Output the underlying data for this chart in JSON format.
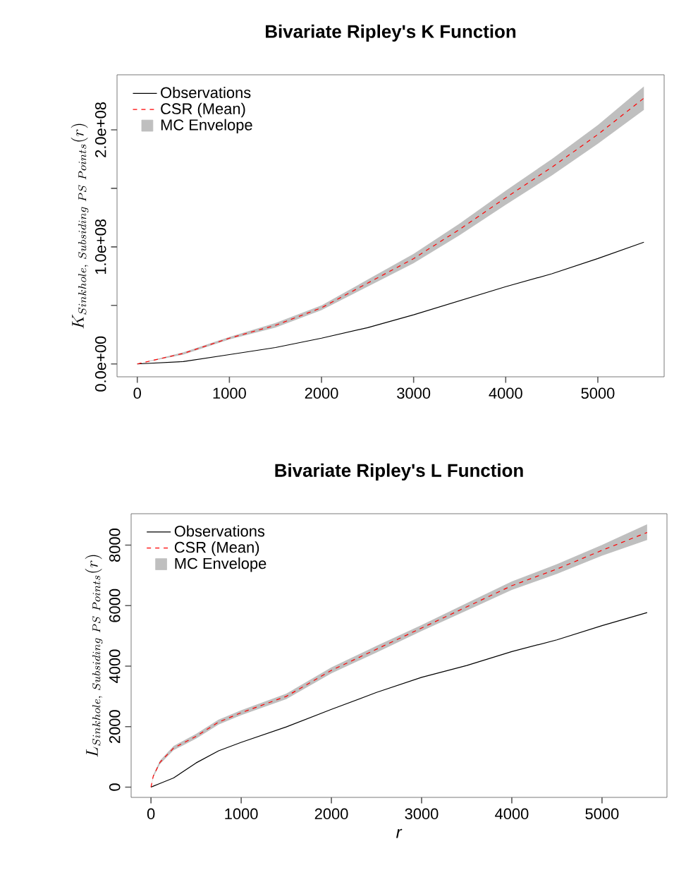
{
  "chart_data": [
    {
      "type": "line",
      "title": "Bivariate Ripley's K Function",
      "ylabel": "K_{Sinkhole,\\ Subsiding\\ PS\\ Points}(r)",
      "x": [
        0,
        500,
        1000,
        1500,
        2000,
        2500,
        3000,
        3500,
        4000,
        4500,
        5000,
        5500
      ],
      "series": [
        {
          "name": "Observations",
          "color": "#000000",
          "line_style": "solid",
          "values": [
            0,
            2000000,
            8000000,
            14000000,
            22000000,
            31000000,
            42000000,
            54000000,
            66000000,
            77000000,
            90000000,
            104000000
          ]
        },
        {
          "name": "CSR (Mean)",
          "color": "#ff0000",
          "line_style": "dashed",
          "values": [
            0,
            9000000,
            22000000,
            33000000,
            48000000,
            69000000,
            90000000,
            115000000,
            142000000,
            168000000,
            196000000,
            227000000
          ],
          "lower": [
            0,
            8000000,
            21000000,
            31000000,
            46000000,
            66000000,
            86000000,
            110000000,
            136000000,
            161000000,
            188000000,
            217000000
          ],
          "upper": [
            0,
            10000000,
            23000000,
            35000000,
            50000000,
            72000000,
            94000000,
            120000000,
            148000000,
            175000000,
            204000000,
            237000000
          ]
        }
      ],
      "annotations": [
        "MC Envelope"
      ],
      "xlim": [
        -220,
        5720
      ],
      "ylim": [
        -11000000,
        247000000
      ],
      "xticks": [
        0,
        1000,
        2000,
        3000,
        4000,
        5000
      ],
      "yticks": [
        {
          "value": 0,
          "label": "0.0e+00"
        },
        {
          "value": 50000000,
          "label": null
        },
        {
          "value": 100000000,
          "label": "1.0e+08"
        },
        {
          "value": 150000000,
          "label": null
        },
        {
          "value": 200000000,
          "label": "2.0e+08"
        }
      ],
      "grid": false,
      "legend": "top left"
    },
    {
      "type": "line",
      "title": "Bivariate Ripley's L Function",
      "xlabel": "*r*",
      "ylabel": "L_{Sinkhole,\\ Subsiding\\ PS\\ Points}(r)",
      "x": [
        0,
        25,
        100,
        250,
        500,
        750,
        1000,
        1500,
        2000,
        2500,
        3000,
        3500,
        4000,
        4500,
        5000,
        5500
      ],
      "series": [
        {
          "name": "Observations",
          "color": "#000000",
          "line_style": "solid",
          "values": [
            0,
            30,
            120,
            300,
            800,
            1200,
            1480,
            1990,
            2570,
            3130,
            3630,
            4020,
            4480,
            4870,
            5340,
            5770
          ]
        },
        {
          "name": "CSR (Mean)",
          "color": "#ff0000",
          "line_style": "dashed",
          "values": [
            0,
            360,
            820,
            1290,
            1680,
            2150,
            2460,
            3000,
            3860,
            4560,
            5260,
            5960,
            6660,
            7210,
            7830,
            8420
          ],
          "lower": [
            0,
            320,
            760,
            1220,
            1600,
            2070,
            2380,
            2910,
            3760,
            4450,
            5160,
            5840,
            6520,
            7050,
            7650,
            8170
          ],
          "upper": [
            0,
            400,
            880,
            1360,
            1760,
            2230,
            2540,
            3090,
            3960,
            4670,
            5360,
            6080,
            6800,
            7370,
            8010,
            8690
          ]
        }
      ],
      "annotations": [
        "MC Envelope"
      ],
      "xlim": [
        -220,
        5720
      ],
      "ylim": [
        -340,
        9040
      ],
      "xticks": [
        0,
        1000,
        2000,
        3000,
        4000,
        5000
      ],
      "yticks": [
        0,
        2000,
        4000,
        6000,
        8000
      ],
      "grid": false,
      "legend": "top left"
    }
  ]
}
